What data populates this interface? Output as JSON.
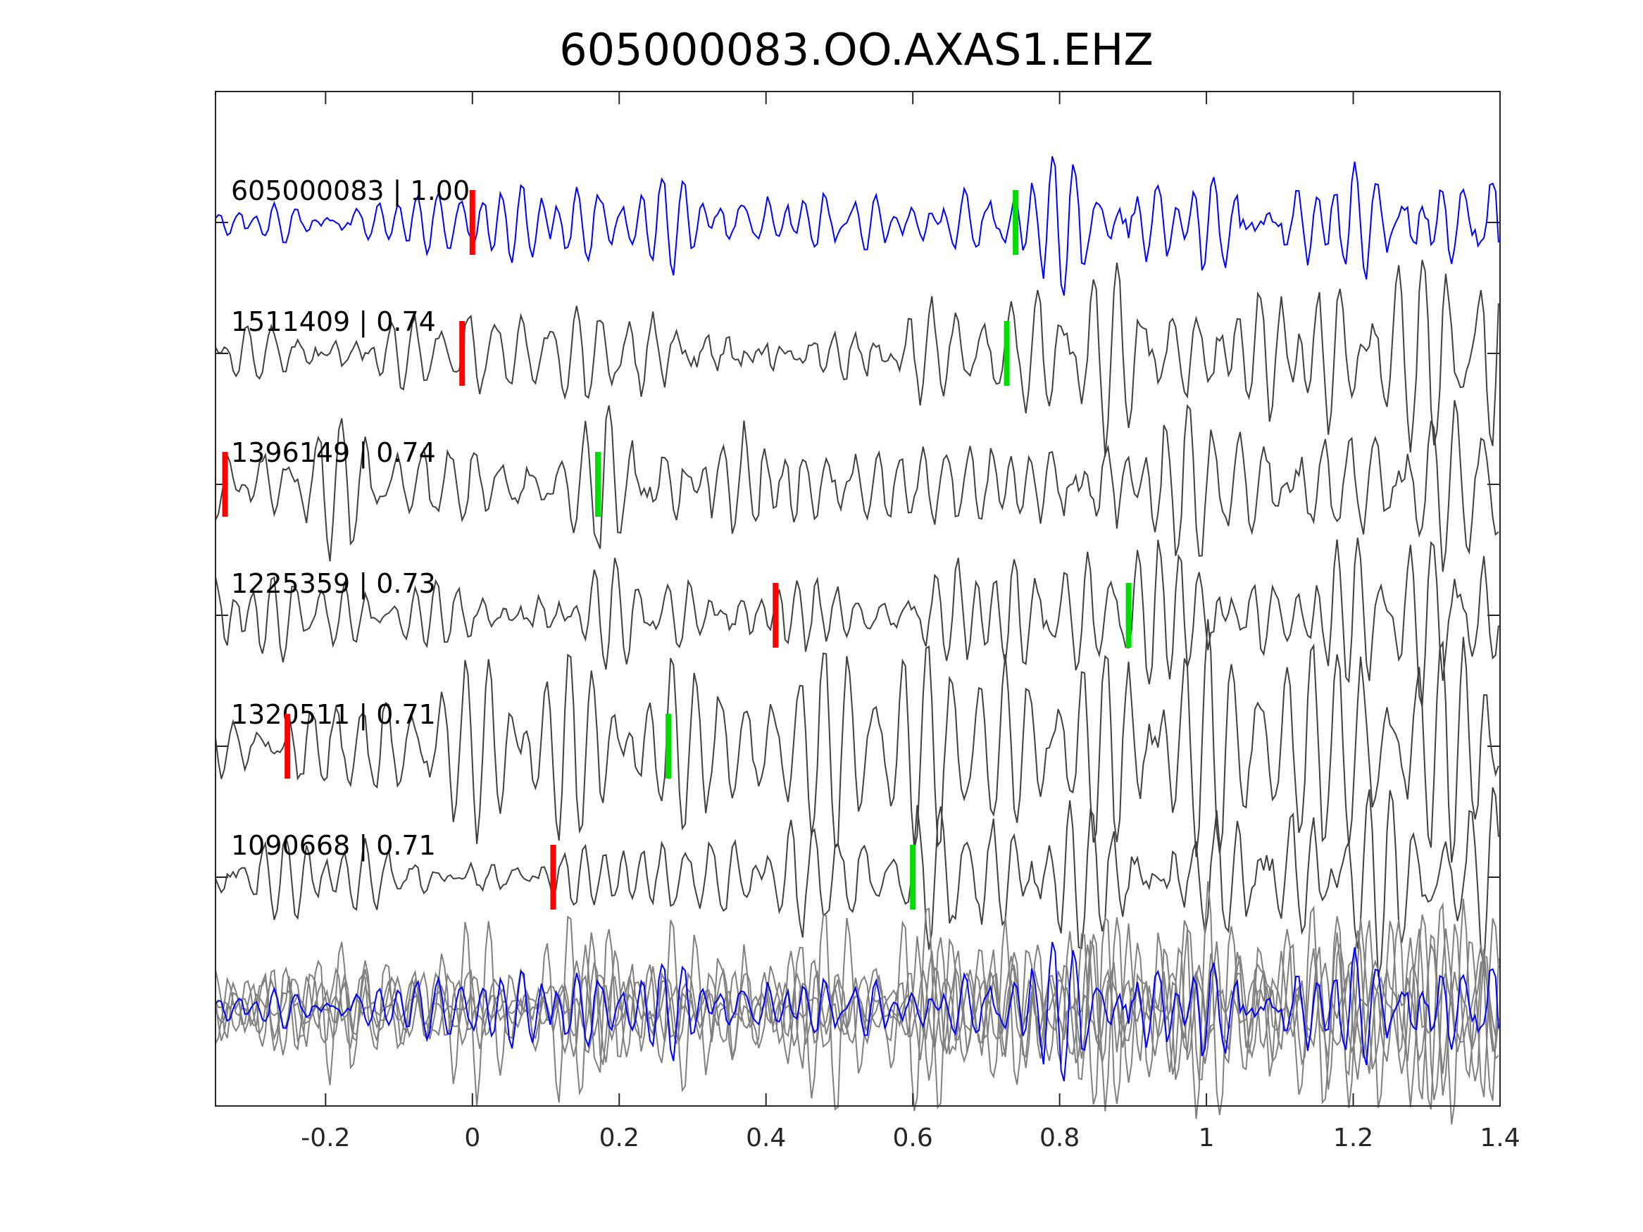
{
  "chart_data": {
    "type": "line",
    "title": "605000083.OO.AXAS1.EHZ",
    "xlabel": "",
    "ylabel": "",
    "xlim": [
      -0.35,
      1.4
    ],
    "xticks": [
      -0.2,
      0,
      0.2,
      0.4,
      0.6,
      0.8,
      1,
      1.2,
      1.4
    ],
    "xtick_labels": [
      "-0.2",
      "0",
      "0.2",
      "0.4",
      "0.6",
      "0.8",
      "1",
      "1.2",
      "1.4"
    ],
    "grid": false,
    "series": [
      {
        "name": "605000083",
        "label": "605000083 | 1.00",
        "cc": 1.0,
        "color": "#0000ff",
        "p_pick": 0.0,
        "s_pick": 0.74
      },
      {
        "name": "1511409",
        "label": "1511409 | 0.74",
        "cc": 0.74,
        "color": "#404040",
        "p_pick": -0.014,
        "s_pick": 0.728
      },
      {
        "name": "1396149",
        "label": "1396149 | 0.74",
        "cc": 0.74,
        "color": "#404040",
        "p_pick": -0.337,
        "s_pick": 0.171
      },
      {
        "name": "1225359",
        "label": "1225359 | 0.73",
        "cc": 0.73,
        "color": "#404040",
        "p_pick": 0.413,
        "s_pick": 0.894
      },
      {
        "name": "1320511",
        "label": "1320511 | 0.71",
        "cc": 0.71,
        "color": "#404040",
        "p_pick": -0.252,
        "s_pick": 0.267
      },
      {
        "name": "1090668",
        "label": "1090668 | 0.71",
        "cc": 0.71,
        "color": "#404040",
        "p_pick": 0.11,
        "s_pick": 0.6
      }
    ],
    "stack": {
      "name": "stack",
      "overlay_color": "#808080",
      "reference_color": "#0000ff"
    },
    "pick_colors": {
      "p": "#ff0000",
      "s": "#00dd00"
    }
  }
}
